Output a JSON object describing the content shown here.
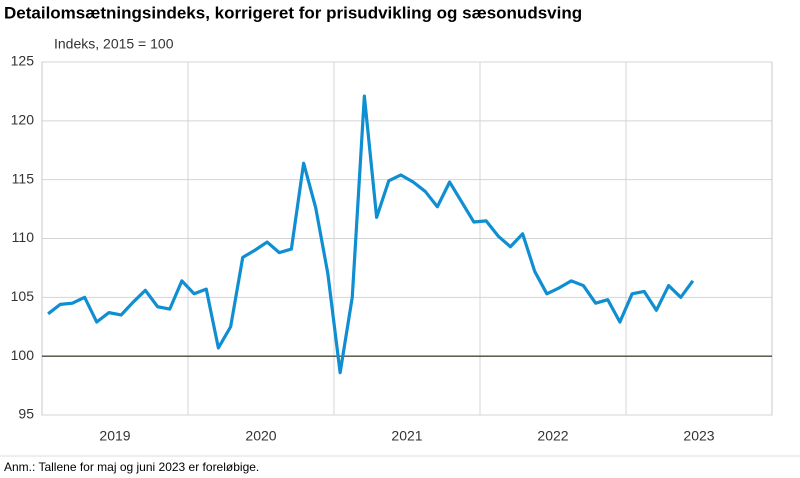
{
  "chart_data": {
    "type": "line",
    "title": "Detailomsætningsindeks, korrigeret for prisudvikling og sæsonudsving",
    "y_label": "Indeks, 2015 = 100",
    "note": "Anm.: Tallene for maj og juni 2023 er foreløbige.",
    "x": [
      2019.042,
      2019.125,
      2019.208,
      2019.292,
      2019.375,
      2019.458,
      2019.542,
      2019.625,
      2019.708,
      2019.792,
      2019.875,
      2019.958,
      2020.042,
      2020.125,
      2020.208,
      2020.292,
      2020.375,
      2020.458,
      2020.542,
      2020.625,
      2020.708,
      2020.792,
      2020.875,
      2020.958,
      2021.042,
      2021.125,
      2021.208,
      2021.292,
      2021.375,
      2021.458,
      2021.542,
      2021.625,
      2021.708,
      2021.792,
      2021.875,
      2021.958,
      2022.042,
      2022.125,
      2022.208,
      2022.292,
      2022.375,
      2022.458,
      2022.542,
      2022.625,
      2022.708,
      2022.792,
      2022.875,
      2022.958,
      2023.042,
      2023.125,
      2023.208,
      2023.292,
      2023.375,
      2023.458
    ],
    "series": [
      {
        "color": "#0f8fd1",
        "values": [
          103.6,
          104.4,
          104.5,
          105.0,
          102.9,
          103.7,
          103.5,
          104.6,
          105.6,
          104.2,
          104.0,
          106.4,
          105.3,
          105.7,
          100.7,
          102.5,
          108.4,
          109.0,
          109.7,
          108.8,
          109.1,
          116.4,
          112.6,
          107.0,
          98.6,
          105.0,
          122.1,
          111.8,
          114.9,
          115.4,
          114.8,
          114.0,
          112.7,
          114.8,
          113.1,
          111.4,
          111.5,
          110.2,
          109.3,
          110.4,
          107.2,
          105.3,
          105.8,
          106.4,
          106.0,
          104.5,
          104.8,
          102.9,
          105.3,
          105.5,
          103.9,
          106.0,
          105.0,
          106.4
        ]
      }
    ],
    "xlim": [
      2019,
      2024
    ],
    "xticks": [
      {
        "value": 2019.5,
        "label": "2019"
      },
      {
        "value": 2020.5,
        "label": "2020"
      },
      {
        "value": 2021.5,
        "label": "2021"
      },
      {
        "value": 2022.5,
        "label": "2022"
      },
      {
        "value": 2023.5,
        "label": "2023"
      }
    ],
    "x_grid": [
      2020,
      2021,
      2022,
      2023
    ],
    "ylim": [
      95,
      125
    ],
    "yticks": [
      95,
      100,
      105,
      110,
      115,
      120,
      125
    ],
    "reference_line": 100,
    "grid": true
  }
}
